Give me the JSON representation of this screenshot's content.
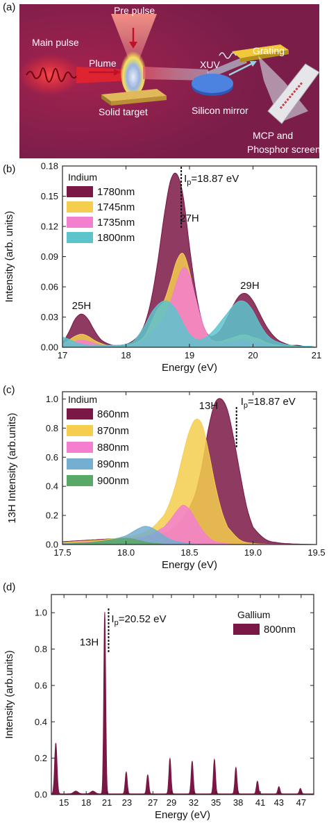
{
  "panel_a": {
    "letter": "(a)",
    "labels": {
      "pre_pulse": "Pre pulse",
      "main_pulse": "Main pulse",
      "plume": "Plume",
      "xuv": "XUV",
      "grating": "Grating",
      "solid_target": "Solid target",
      "silicon_mirror": "Silicon mirror",
      "mcp_line1": "MCP and",
      "mcp_line2": "Phosphor screen"
    },
    "colors": {
      "background": "#7d1f4a",
      "beam": "#e8242c",
      "target": "#c9a24a",
      "grating": "#e0b93a",
      "mirror": "#3a6cc8"
    }
  },
  "chart_data": [
    {
      "id": "b",
      "type": "area",
      "letter": "(b)",
      "xlabel": "Energy (eV)",
      "ylabel": "Intensity (arb. units)",
      "xlim": [
        17,
        21
      ],
      "ylim": [
        0,
        0.18
      ],
      "xticks": [
        "17",
        "18",
        "19",
        "20",
        "21"
      ],
      "yticks": [
        "0.00",
        "0.03",
        "0.06",
        "0.09",
        "0.12",
        "0.15",
        "0.18"
      ],
      "legend_title": "Indium",
      "legend_position": "top-left",
      "series": [
        {
          "name": "1780nm",
          "color": "#7a1745",
          "x": [
            17.0,
            17.1,
            17.2,
            17.3,
            17.4,
            17.5,
            17.6,
            17.7,
            17.8,
            17.9,
            18.0,
            18.1,
            18.2,
            18.3,
            18.4,
            18.5,
            18.6,
            18.7,
            18.8,
            18.9,
            19.0,
            19.1,
            19.2,
            19.3,
            19.4,
            19.5,
            19.6,
            19.7,
            19.8,
            19.9,
            20.0,
            20.1,
            20.2,
            20.3,
            20.4,
            20.5,
            20.6,
            20.7,
            20.8,
            20.9,
            21.0
          ],
          "values": [
            0.005,
            0.015,
            0.028,
            0.033,
            0.028,
            0.017,
            0.008,
            0.004,
            0.002,
            0.002,
            0.003,
            0.006,
            0.012,
            0.024,
            0.048,
            0.085,
            0.13,
            0.165,
            0.172,
            0.15,
            0.1,
            0.055,
            0.025,
            0.012,
            0.012,
            0.018,
            0.03,
            0.043,
            0.052,
            0.053,
            0.046,
            0.034,
            0.022,
            0.013,
            0.007,
            0.004,
            0.002,
            0.002,
            0.001,
            0.001,
            0.0
          ]
        },
        {
          "name": "1745nm",
          "color": "#f5ce4e",
          "x": [
            17.0,
            17.1,
            17.2,
            17.3,
            17.4,
            17.5,
            17.6,
            17.7,
            17.8,
            17.9,
            18.0,
            18.1,
            18.2,
            18.3,
            18.4,
            18.5,
            18.6,
            18.7,
            18.8,
            18.9,
            19.0,
            19.1,
            19.2,
            19.3,
            19.4,
            19.5,
            19.6,
            19.7,
            19.8,
            19.9,
            20.0,
            20.1,
            20.2,
            20.3,
            20.4,
            20.5,
            20.6,
            20.7,
            20.8,
            20.9,
            21.0
          ],
          "values": [
            0.003,
            0.007,
            0.011,
            0.013,
            0.011,
            0.007,
            0.004,
            0.002,
            0.001,
            0.001,
            0.001,
            0.003,
            0.006,
            0.012,
            0.025,
            0.038,
            0.046,
            0.065,
            0.086,
            0.093,
            0.075,
            0.045,
            0.022,
            0.01,
            0.006,
            0.006,
            0.008,
            0.01,
            0.012,
            0.012,
            0.01,
            0.008,
            0.005,
            0.003,
            0.002,
            0.001,
            0.001,
            0.001,
            0.0,
            0.0,
            0.0
          ]
        },
        {
          "name": "1735nm",
          "color": "#f47fd0",
          "x": [
            17.0,
            17.1,
            17.2,
            17.3,
            17.4,
            17.5,
            17.6,
            17.7,
            17.8,
            17.9,
            18.0,
            18.1,
            18.2,
            18.3,
            18.4,
            18.5,
            18.6,
            18.7,
            18.8,
            18.9,
            19.0,
            19.1,
            19.2,
            19.3,
            19.4,
            19.5,
            19.6,
            19.7,
            19.8,
            19.9,
            20.0,
            20.1,
            20.2,
            20.3,
            20.4,
            20.5,
            20.6,
            20.7,
            20.8,
            20.9,
            21.0
          ],
          "values": [
            0.002,
            0.004,
            0.006,
            0.007,
            0.006,
            0.004,
            0.002,
            0.001,
            0.001,
            0.001,
            0.001,
            0.002,
            0.004,
            0.008,
            0.015,
            0.022,
            0.03,
            0.045,
            0.065,
            0.079,
            0.072,
            0.048,
            0.025,
            0.011,
            0.005,
            0.004,
            0.005,
            0.006,
            0.007,
            0.007,
            0.006,
            0.005,
            0.003,
            0.002,
            0.001,
            0.001,
            0.0,
            0.0,
            0.0,
            0.0,
            0.0
          ]
        },
        {
          "name": "1800nm",
          "color": "#5cc4cc",
          "x": [
            17.0,
            17.1,
            17.2,
            17.3,
            17.4,
            17.5,
            17.6,
            17.7,
            17.8,
            17.9,
            18.0,
            18.1,
            18.2,
            18.3,
            18.4,
            18.5,
            18.6,
            18.7,
            18.8,
            18.9,
            19.0,
            19.1,
            19.2,
            19.3,
            19.4,
            19.5,
            19.6,
            19.7,
            19.8,
            19.9,
            20.0,
            20.1,
            20.2,
            20.3,
            20.4,
            20.5,
            20.6,
            20.7,
            20.8,
            20.9,
            21.0
          ],
          "values": [
            0.01,
            0.008,
            0.005,
            0.003,
            0.002,
            0.002,
            0.002,
            0.002,
            0.002,
            0.002,
            0.003,
            0.005,
            0.012,
            0.022,
            0.034,
            0.042,
            0.046,
            0.044,
            0.036,
            0.024,
            0.013,
            0.008,
            0.008,
            0.012,
            0.018,
            0.026,
            0.034,
            0.042,
            0.046,
            0.044,
            0.036,
            0.024,
            0.014,
            0.008,
            0.005,
            0.003,
            0.002,
            0.001,
            0.001,
            0.001,
            0.0
          ]
        }
      ],
      "ip_label_prefix": "I",
      "ip_label_sub": "p",
      "ip_label_suffix": "=18.87 eV",
      "ip_value": 18.87,
      "annotations": [
        {
          "text": "25H",
          "x": 17.3,
          "y": 0.038
        },
        {
          "text": "27H",
          "x": 19.0,
          "y": 0.125
        },
        {
          "text": "29H",
          "x": 19.95,
          "y": 0.058
        }
      ]
    },
    {
      "id": "c",
      "type": "area",
      "letter": "(c)",
      "xlabel": "Energy (eV)",
      "ylabel": "13H Intensity (arb.units)",
      "xlim": [
        17.5,
        19.5
      ],
      "ylim": [
        0,
        1.05
      ],
      "xticks": [
        "17.5",
        "18.0",
        "18.5",
        "19.0",
        "19.5"
      ],
      "yticks": [
        "0.0",
        "0.2",
        "0.4",
        "0.6",
        "0.8",
        "1.0"
      ],
      "legend_title": "Indium",
      "legend_position": "top-left",
      "series": [
        {
          "name": "860nm",
          "color": "#7a1745",
          "x": [
            17.5,
            17.6,
            17.7,
            17.8,
            17.9,
            18.0,
            18.1,
            18.2,
            18.3,
            18.4,
            18.5,
            18.55,
            18.6,
            18.65,
            18.7,
            18.75,
            18.8,
            18.85,
            18.9,
            18.95,
            19.0,
            19.1,
            19.2,
            19.3,
            19.4,
            19.5
          ],
          "values": [
            0.02,
            0.025,
            0.03,
            0.035,
            0.04,
            0.045,
            0.05,
            0.06,
            0.08,
            0.13,
            0.25,
            0.36,
            0.55,
            0.8,
            0.97,
            1.0,
            0.92,
            0.72,
            0.48,
            0.26,
            0.12,
            0.035,
            0.012,
            0.005,
            0.002,
            0.0
          ]
        },
        {
          "name": "870nm",
          "color": "#f5ce4e",
          "x": [
            17.5,
            17.6,
            17.7,
            17.8,
            17.9,
            18.0,
            18.1,
            18.2,
            18.3,
            18.35,
            18.4,
            18.45,
            18.5,
            18.55,
            18.6,
            18.65,
            18.7,
            18.75,
            18.8,
            18.9,
            19.0,
            19.1,
            19.2,
            19.5
          ],
          "values": [
            0.015,
            0.02,
            0.025,
            0.03,
            0.04,
            0.05,
            0.07,
            0.11,
            0.2,
            0.3,
            0.44,
            0.62,
            0.78,
            0.86,
            0.82,
            0.64,
            0.42,
            0.24,
            0.12,
            0.03,
            0.008,
            0.003,
            0.001,
            0.0
          ]
        },
        {
          "name": "880nm",
          "color": "#f47fd0",
          "x": [
            17.5,
            17.6,
            17.7,
            17.8,
            17.9,
            18.0,
            18.1,
            18.2,
            18.3,
            18.35,
            18.4,
            18.45,
            18.5,
            18.55,
            18.6,
            18.65,
            18.7,
            18.8,
            18.9,
            19.5
          ],
          "values": [
            0.01,
            0.012,
            0.015,
            0.018,
            0.022,
            0.03,
            0.045,
            0.07,
            0.12,
            0.17,
            0.23,
            0.27,
            0.24,
            0.17,
            0.1,
            0.05,
            0.02,
            0.005,
            0.001,
            0.0
          ]
        },
        {
          "name": "890nm",
          "color": "#74aed0",
          "x": [
            17.5,
            17.6,
            17.7,
            17.8,
            17.9,
            18.0,
            18.05,
            18.1,
            18.15,
            18.2,
            18.25,
            18.3,
            18.35,
            18.4,
            18.5,
            18.6,
            18.7,
            19.5
          ],
          "values": [
            0.005,
            0.008,
            0.012,
            0.02,
            0.035,
            0.06,
            0.085,
            0.11,
            0.125,
            0.115,
            0.09,
            0.06,
            0.035,
            0.02,
            0.006,
            0.002,
            0.0,
            0.0
          ]
        },
        {
          "name": "900nm",
          "color": "#5aa867",
          "x": [
            17.5,
            17.6,
            17.7,
            17.8,
            17.9,
            17.95,
            18.0,
            18.05,
            18.1,
            18.15,
            18.2,
            18.3,
            18.4,
            19.5
          ],
          "values": [
            0.003,
            0.006,
            0.012,
            0.022,
            0.035,
            0.04,
            0.042,
            0.038,
            0.028,
            0.018,
            0.01,
            0.003,
            0.001,
            0.0
          ]
        }
      ],
      "ip_label_prefix": "I",
      "ip_label_sub": "p",
      "ip_label_suffix": "=18.87 eV",
      "ip_value": 18.87,
      "annotations": [
        {
          "text": "13H",
          "x": 18.65,
          "y": 0.93
        }
      ]
    },
    {
      "id": "d",
      "type": "area",
      "letter": "(d)",
      "xlabel": "Energy (eV)",
      "ylabel": "Intensity (arb.units)",
      "xlim": [
        12.8,
        48.2
      ],
      "ylim": [
        0,
        1.1
      ],
      "xticks": [
        "15",
        "18",
        "21",
        "23",
        "27",
        "29",
        "32",
        "35",
        "38",
        "41",
        "43",
        "47"
      ],
      "xtick_values": [
        14.5,
        17.5,
        20.3,
        23.0,
        26.5,
        29.0,
        32.0,
        35.0,
        38.0,
        41.0,
        43.5,
        46.5
      ],
      "yticks": [
        "0.0",
        "0.2",
        "0.4",
        "0.6",
        "0.8",
        "1.0"
      ],
      "legend_title": "Gallium",
      "legend_position": "top-right",
      "series": [
        {
          "name": "800nm",
          "color": "#7a1745",
          "peaks": [
            {
              "x": 13.4,
              "y": 0.28,
              "w": 0.16
            },
            {
              "x": 16.1,
              "y": 0.015,
              "w": 0.3
            },
            {
              "x": 18.4,
              "y": 0.015,
              "w": 0.3
            },
            {
              "x": 20.0,
              "y": 1.0,
              "w": 0.13
            },
            {
              "x": 22.9,
              "y": 0.12,
              "w": 0.14
            },
            {
              "x": 25.8,
              "y": 0.105,
              "w": 0.14
            },
            {
              "x": 28.8,
              "y": 0.195,
              "w": 0.14
            },
            {
              "x": 31.8,
              "y": 0.18,
              "w": 0.14
            },
            {
              "x": 34.8,
              "y": 0.19,
              "w": 0.14
            },
            {
              "x": 37.7,
              "y": 0.145,
              "w": 0.14
            },
            {
              "x": 40.6,
              "y": 0.07,
              "w": 0.14
            },
            {
              "x": 43.5,
              "y": 0.04,
              "w": 0.14
            },
            {
              "x": 46.4,
              "y": 0.03,
              "w": 0.14
            }
          ],
          "baseline": 0.004
        }
      ],
      "ip_label_prefix": "I",
      "ip_label_sub": "p",
      "ip_label_suffix": "=20.52 eV",
      "ip_value": 20.52,
      "annotations": [
        {
          "text": "13H",
          "x": 17.9,
          "y": 0.82
        }
      ]
    }
  ]
}
